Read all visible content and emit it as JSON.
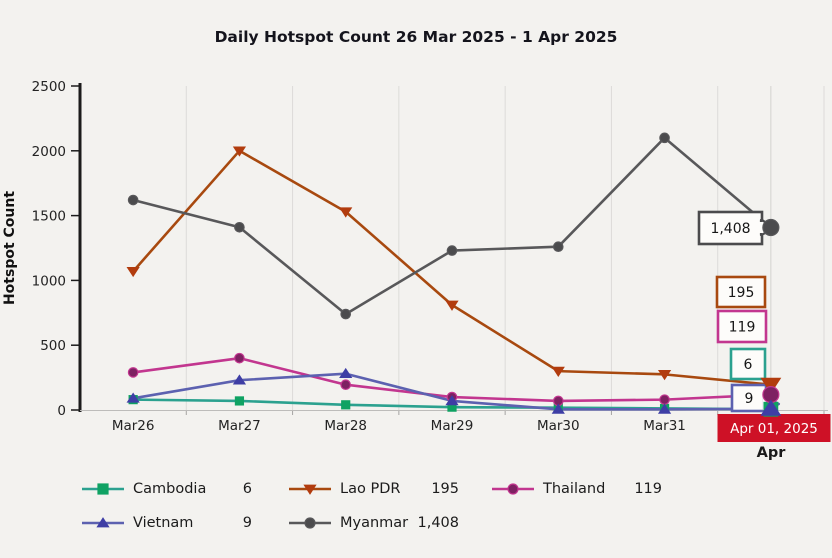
{
  "chart_data": {
    "type": "line",
    "title": "Daily Hotspot Count 26 Mar 2025 - 1 Apr 2025",
    "ylabel": "Hotspot Count",
    "ylim": [
      0,
      2500
    ],
    "yticks": [
      0,
      500,
      1000,
      1500,
      2000,
      2500
    ],
    "grid": "vertical-only",
    "legend_position": "bottom",
    "categories": [
      "Mar26",
      "Mar27",
      "Mar28",
      "Mar29",
      "Mar30",
      "Mar31",
      "Apr 01, 2025"
    ],
    "selected_point": {
      "date_label": "Apr 01, 2025",
      "month_label": "Apr",
      "highlight_color": "#ce1126"
    },
    "series": [
      {
        "name": "Cambodia",
        "label": "6",
        "line_color": "#2ba18f",
        "marker": "square",
        "marker_color": "#0fa263",
        "values": [
          80,
          70,
          40,
          22,
          18,
          12,
          6
        ]
      },
      {
        "name": "Lao PDR",
        "label": "195",
        "line_color": "#a8490f",
        "marker": "triangle-down",
        "marker_color": "#b23c0e",
        "values": [
          1070,
          2000,
          1530,
          810,
          300,
          275,
          195
        ]
      },
      {
        "name": "Thailand",
        "label": "119",
        "line_color": "#c2368f",
        "marker": "circle",
        "marker_color": "#7e2162",
        "values": [
          290,
          400,
          195,
          100,
          70,
          80,
          119
        ]
      },
      {
        "name": "Vietnam",
        "label": "9",
        "line_color": "#5c61b0",
        "marker": "triangle-up",
        "marker_color": "#3e3ea5",
        "values": [
          90,
          230,
          280,
          70,
          5,
          5,
          9
        ]
      },
      {
        "name": "Myanmar",
        "label": "1,408",
        "line_color": "#58585a",
        "marker": "circle",
        "marker_color": "#4b4b4d",
        "values": [
          1620,
          1410,
          740,
          1230,
          1260,
          2100,
          1408
        ]
      }
    ]
  }
}
